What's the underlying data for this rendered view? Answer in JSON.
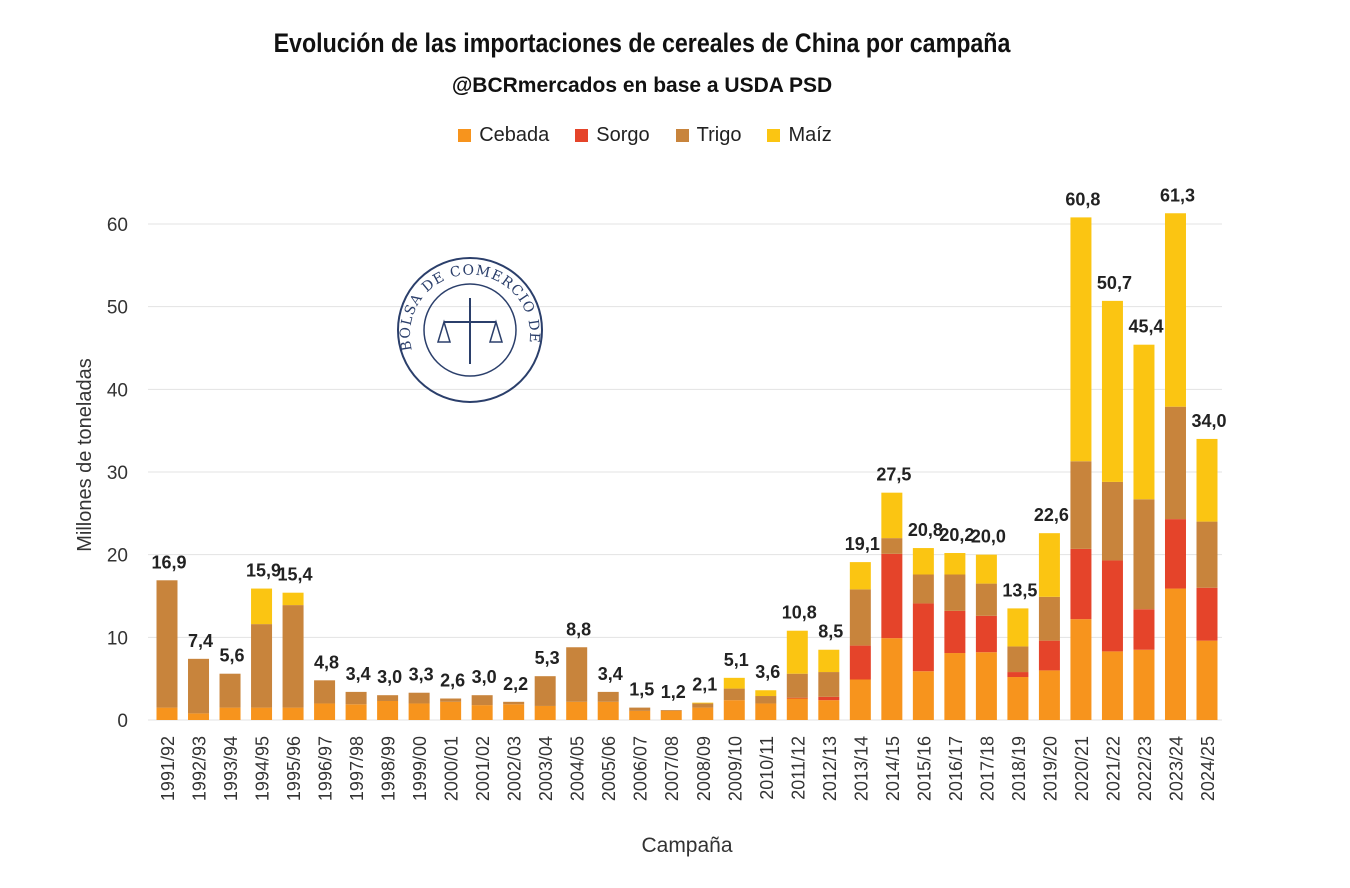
{
  "chart_data": {
    "type": "bar",
    "stacked": true,
    "title": "Evolución de las importaciones de cereales de China por campaña",
    "subtitle": "@BCRmercados en base a USDA PSD",
    "xlabel": "Campaña",
    "ylabel": "Millones de toneladas",
    "ylim": [
      0,
      65
    ],
    "yticks": [
      0,
      10,
      20,
      30,
      40,
      50,
      60
    ],
    "grid": true,
    "legend_position": "top",
    "watermark": "BOLSA DE COMERCIO DE ROSARIO",
    "categories": [
      "1991/92",
      "1992/93",
      "1993/94",
      "1994/95",
      "1995/96",
      "1996/97",
      "1997/98",
      "1998/99",
      "1999/00",
      "2000/01",
      "2001/02",
      "2002/03",
      "2003/04",
      "2004/05",
      "2005/06",
      "2006/07",
      "2007/08",
      "2008/09",
      "2009/10",
      "2010/11",
      "2011/12",
      "2012/13",
      "2013/14",
      "2014/15",
      "2015/16",
      "2016/17",
      "2017/18",
      "2018/19",
      "2019/20",
      "2020/21",
      "2021/22",
      "2022/23",
      "2023/24",
      "2024/25"
    ],
    "totals": [
      "16,9",
      "7,4",
      "5,6",
      "15,9",
      "15,4",
      "4,8",
      "3,4",
      "3,0",
      "3,3",
      "2,6",
      "3,0",
      "2,2",
      "5,3",
      "8,8",
      "3,4",
      "1,5",
      "1,2",
      "2,1",
      "5,1",
      "3,6",
      "10,8",
      "8,5",
      "19,1",
      "27,5",
      "20,8",
      "20,2",
      "20,0",
      "13,5",
      "22,6",
      "60,8",
      "50,7",
      "45,4",
      "61,3",
      "34,0"
    ],
    "series": [
      {
        "name": "Cebada",
        "color": "#F7941D",
        "values": [
          1.5,
          0.8,
          1.5,
          1.5,
          1.5,
          2.0,
          1.9,
          2.3,
          2.0,
          2.2,
          1.8,
          1.9,
          1.7,
          2.2,
          2.2,
          1.1,
          1.1,
          1.5,
          2.4,
          2.0,
          2.6,
          2.4,
          4.9,
          9.9,
          5.9,
          8.1,
          8.2,
          5.2,
          6.0,
          12.2,
          8.3,
          8.5,
          15.9,
          9.6
        ]
      },
      {
        "name": "Sorgo",
        "color": "#E5442A",
        "values": [
          0,
          0,
          0,
          0,
          0,
          0,
          0,
          0,
          0,
          0,
          0,
          0,
          0,
          0,
          0,
          0,
          0,
          0,
          0,
          0,
          0.1,
          0.4,
          4.1,
          10.2,
          8.2,
          5.1,
          4.4,
          0.6,
          3.6,
          8.5,
          11.0,
          4.9,
          8.4,
          6.4
        ]
      },
      {
        "name": "Trigo",
        "color": "#C8843C",
        "values": [
          15.4,
          6.6,
          4.1,
          10.1,
          12.4,
          2.8,
          1.5,
          0.7,
          1.3,
          0.4,
          1.2,
          0.3,
          3.6,
          6.6,
          1.2,
          0.4,
          0.1,
          0.5,
          1.4,
          0.9,
          2.9,
          3.0,
          6.8,
          1.9,
          3.5,
          4.4,
          3.9,
          3.1,
          5.3,
          10.6,
          9.5,
          13.3,
          13.6,
          8.0
        ]
      },
      {
        "name": "Maíz",
        "color": "#FBC512",
        "values": [
          0,
          0,
          0,
          4.3,
          1.5,
          0,
          0,
          0,
          0,
          0,
          0,
          0,
          0,
          0,
          0,
          0,
          0,
          0.1,
          1.3,
          0.7,
          5.2,
          2.7,
          3.3,
          5.5,
          3.2,
          2.6,
          3.5,
          4.6,
          7.7,
          29.5,
          21.9,
          18.7,
          23.4,
          10.0
        ]
      }
    ]
  }
}
